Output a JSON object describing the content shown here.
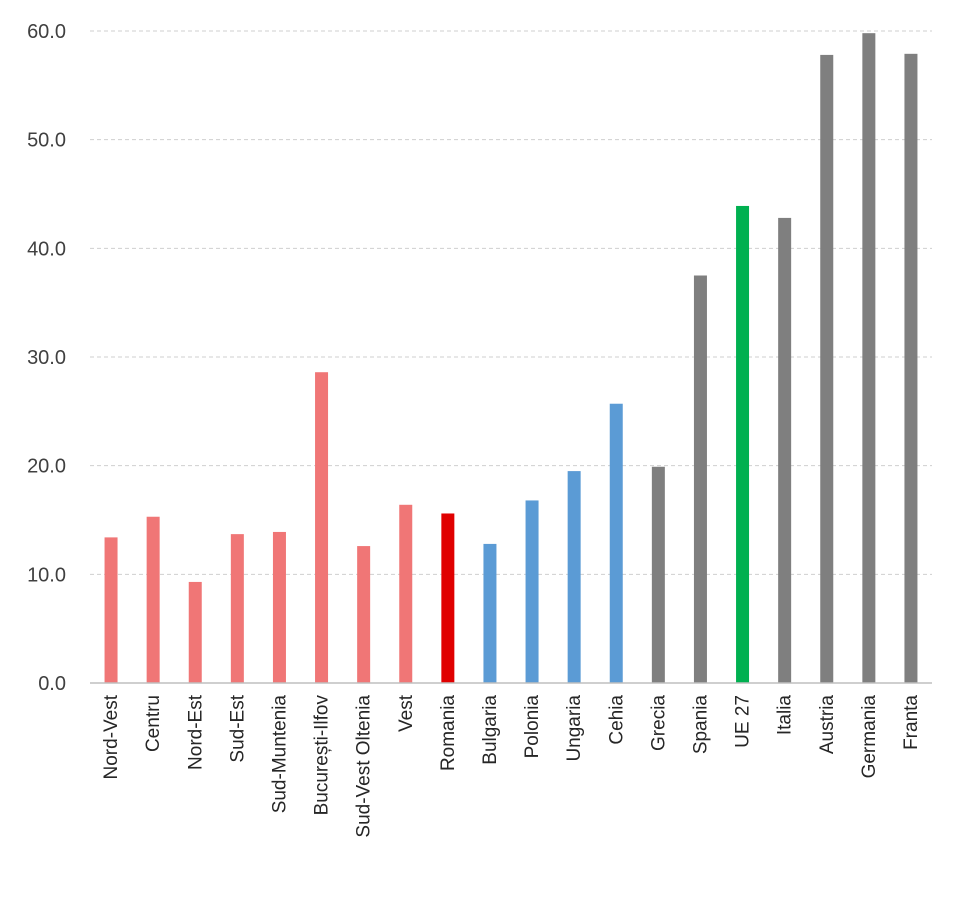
{
  "chart_data": {
    "type": "bar",
    "title": "",
    "xlabel": "",
    "ylabel": "",
    "ylim": [
      0,
      60
    ],
    "yticks": [
      "0.0",
      "10.0",
      "20.0",
      "30.0",
      "40.0",
      "50.0",
      "60.0"
    ],
    "grid": true,
    "legend": "none",
    "categories": [
      "Nord-Vest",
      "Centru",
      "Nord-Est",
      "Sud-Est",
      "Sud-Muntenia",
      "București-Ilfov",
      "Sud-Vest Oltenia",
      "Vest",
      "Romania",
      "Bulgaria",
      "Polonia",
      "Ungaria",
      "Cehia",
      "Grecia",
      "Spania",
      "UE 27",
      "Italia",
      "Austria",
      "Germania",
      "Franta"
    ],
    "values": [
      13.4,
      15.3,
      9.3,
      13.7,
      13.9,
      28.6,
      12.6,
      16.4,
      15.6,
      12.8,
      16.8,
      19.5,
      25.7,
      19.9,
      37.5,
      43.9,
      42.8,
      57.8,
      59.8,
      57.9
    ],
    "colors": [
      "#f07676",
      "#f07676",
      "#f07676",
      "#f07676",
      "#f07676",
      "#f07676",
      "#f07676",
      "#f07676",
      "#e00000",
      "#5b9bd5",
      "#5b9bd5",
      "#5b9bd5",
      "#5b9bd5",
      "#7f7f7f",
      "#7f7f7f",
      "#00b050",
      "#7f7f7f",
      "#7f7f7f",
      "#7f7f7f",
      "#7f7f7f"
    ]
  }
}
